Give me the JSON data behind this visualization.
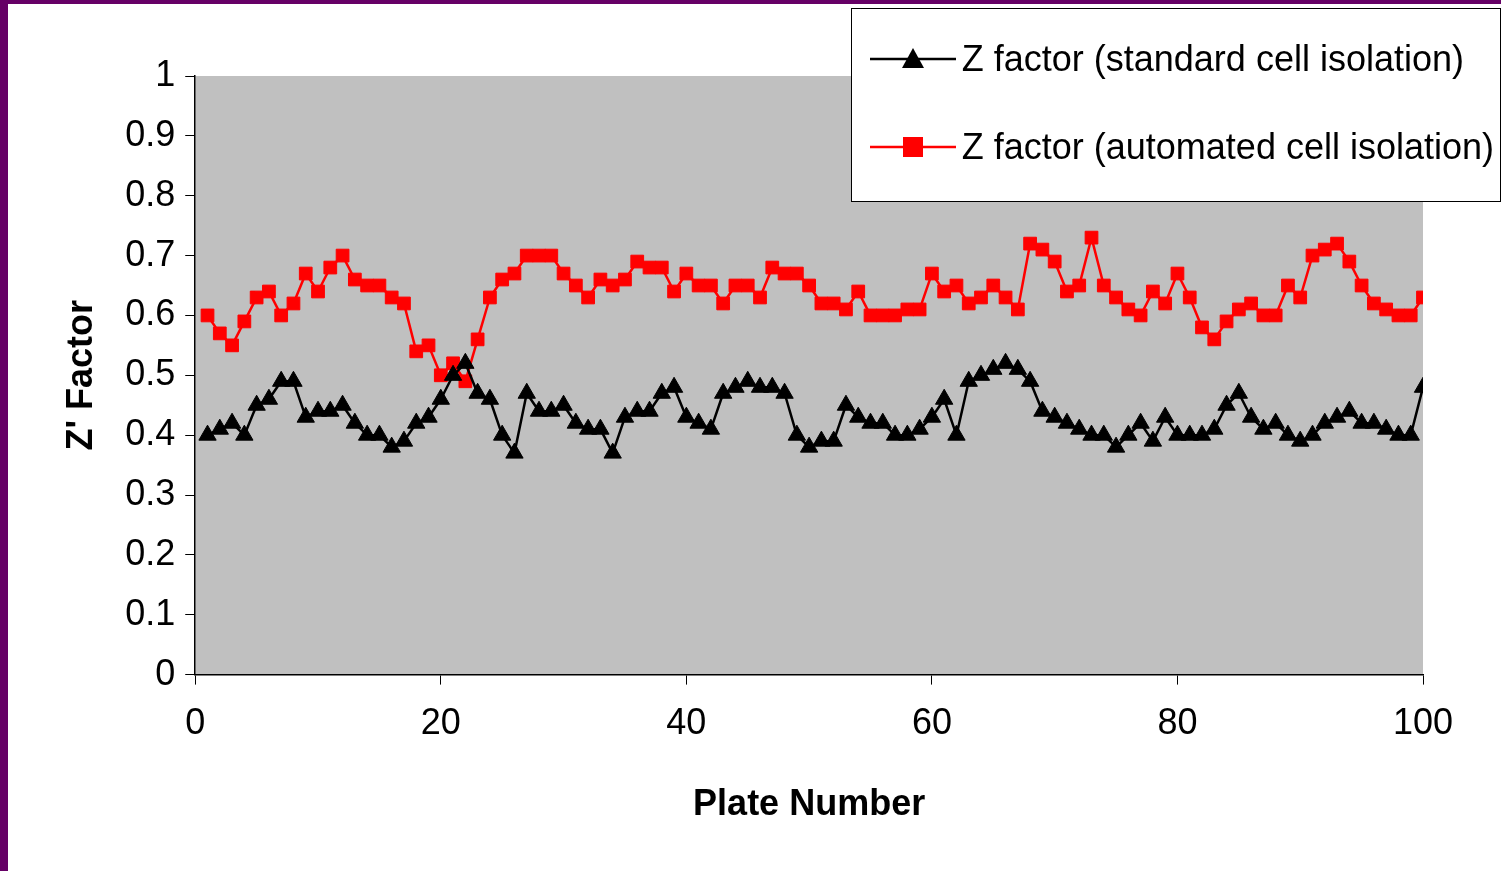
{
  "chart_data": {
    "type": "line",
    "xlabel": "Plate Number",
    "ylabel": "Z' Factor",
    "x": [
      1,
      2,
      3,
      4,
      5,
      6,
      7,
      8,
      9,
      10,
      11,
      12,
      13,
      14,
      15,
      16,
      17,
      18,
      19,
      20,
      21,
      22,
      23,
      24,
      25,
      26,
      27,
      28,
      29,
      30,
      31,
      32,
      33,
      34,
      35,
      36,
      37,
      38,
      39,
      40,
      41,
      42,
      43,
      44,
      45,
      46,
      47,
      48,
      49,
      50,
      51,
      52,
      53,
      54,
      55,
      56,
      57,
      58,
      59,
      60,
      61,
      62,
      63,
      64,
      65,
      66,
      67,
      68,
      69,
      70,
      71,
      72,
      73,
      74,
      75,
      76,
      77,
      78,
      79,
      80,
      81,
      82,
      83,
      84,
      85,
      86,
      87,
      88,
      89,
      90,
      91,
      92,
      93,
      94,
      95,
      96,
      97,
      98,
      99,
      100
    ],
    "series": [
      {
        "name": "Z factor (standard cell isolation)",
        "color": "#000000",
        "marker": "triangle",
        "values": [
          0.4,
          0.41,
          0.42,
          0.4,
          0.45,
          0.46,
          0.49,
          0.49,
          0.43,
          0.44,
          0.44,
          0.45,
          0.42,
          0.4,
          0.4,
          0.38,
          0.39,
          0.42,
          0.43,
          0.46,
          0.5,
          0.52,
          0.47,
          0.46,
          0.4,
          0.37,
          0.47,
          0.44,
          0.44,
          0.45,
          0.42,
          0.41,
          0.41,
          0.37,
          0.43,
          0.44,
          0.44,
          0.47,
          0.48,
          0.43,
          0.42,
          0.41,
          0.47,
          0.48,
          0.49,
          0.48,
          0.48,
          0.47,
          0.4,
          0.38,
          0.39,
          0.39,
          0.45,
          0.43,
          0.42,
          0.42,
          0.4,
          0.4,
          0.41,
          0.43,
          0.46,
          0.4,
          0.49,
          0.5,
          0.51,
          0.52,
          0.51,
          0.49,
          0.44,
          0.43,
          0.42,
          0.41,
          0.4,
          0.4,
          0.38,
          0.4,
          0.42,
          0.39,
          0.43,
          0.4,
          0.4,
          0.4,
          0.41,
          0.45,
          0.47,
          0.43,
          0.41,
          0.42,
          0.4,
          0.39,
          0.4,
          0.42,
          0.43,
          0.44,
          0.42,
          0.42,
          0.41,
          0.4,
          0.4,
          0.48
        ]
      },
      {
        "name": "Z factor (automated cell isolation)",
        "color": "#ff0000",
        "marker": "square",
        "values": [
          0.6,
          0.57,
          0.55,
          0.59,
          0.63,
          0.64,
          0.6,
          0.62,
          0.67,
          0.64,
          0.68,
          0.7,
          0.66,
          0.65,
          0.65,
          0.63,
          0.62,
          0.54,
          0.55,
          0.5,
          0.52,
          0.49,
          0.56,
          0.63,
          0.66,
          0.67,
          0.7,
          0.7,
          0.7,
          0.67,
          0.65,
          0.63,
          0.66,
          0.65,
          0.66,
          0.69,
          0.68,
          0.68,
          0.64,
          0.67,
          0.65,
          0.65,
          0.62,
          0.65,
          0.65,
          0.63,
          0.68,
          0.67,
          0.67,
          0.65,
          0.62,
          0.62,
          0.61,
          0.64,
          0.6,
          0.6,
          0.6,
          0.61,
          0.61,
          0.67,
          0.64,
          0.65,
          0.62,
          0.63,
          0.65,
          0.63,
          0.61,
          0.72,
          0.71,
          0.69,
          0.64,
          0.65,
          0.73,
          0.65,
          0.63,
          0.61,
          0.6,
          0.64,
          0.62,
          0.67,
          0.63,
          0.58,
          0.56,
          0.59,
          0.61,
          0.62,
          0.6,
          0.6,
          0.65,
          0.63,
          0.7,
          0.71,
          0.72,
          0.69,
          0.65,
          0.62,
          0.61,
          0.6,
          0.6,
          0.63
        ]
      }
    ],
    "xlim": [
      0,
      100
    ],
    "xticks": [
      0,
      20,
      40,
      60,
      80,
      100
    ],
    "ylim": [
      0,
      1
    ],
    "yticks": [
      0,
      0.1,
      0.2,
      0.3,
      0.4,
      0.5,
      0.6,
      0.7,
      0.8,
      0.9,
      1
    ],
    "grid": false,
    "legend": "top right",
    "line_style": "solid"
  }
}
